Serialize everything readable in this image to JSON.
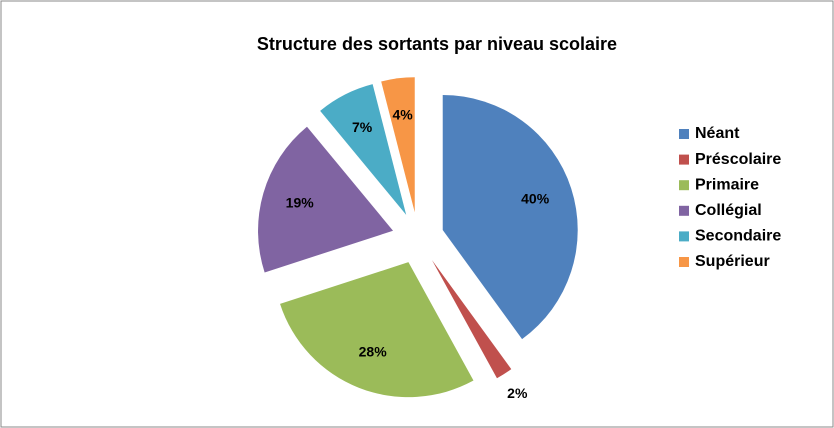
{
  "chart_data": {
    "type": "pie",
    "title": "Structure des sortants par niveau scolaire",
    "categories": [
      "Néant",
      "Préscolaire",
      "Primaire",
      "Collégial",
      "Secondaire",
      "Supérieur"
    ],
    "values": [
      40,
      2,
      28,
      19,
      7,
      4
    ],
    "value_labels": [
      "40%",
      "2%",
      "28%",
      "19%",
      "7%",
      "4%"
    ],
    "colors": [
      "#4f81bd",
      "#c0504d",
      "#9bbb59",
      "#8064a2",
      "#4bacc6",
      "#f79646"
    ],
    "legend": "right"
  }
}
